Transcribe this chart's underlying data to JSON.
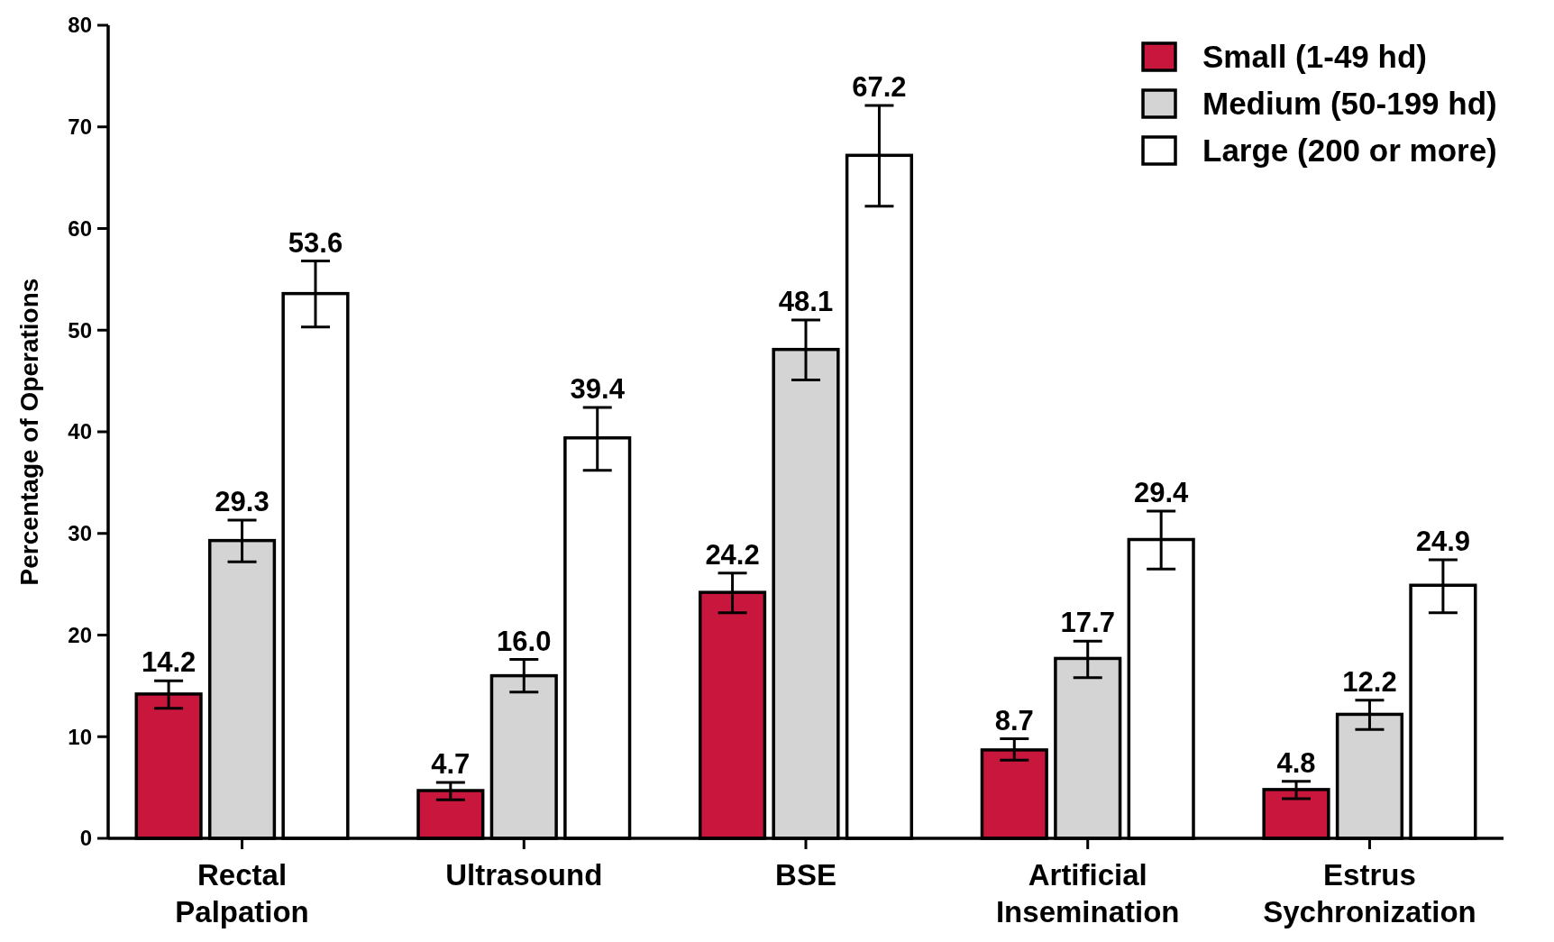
{
  "chart_data": {
    "type": "bar",
    "ylabel": "Percentage of Operations",
    "categories": [
      "Rectal Palpation",
      "Ultrasound",
      "BSE",
      "Artificial Insemination",
      "Estrus Sychronization"
    ],
    "series": [
      {
        "name": "Small (1-49 hd)",
        "color": "#c8163c",
        "values": [
          14.2,
          4.7,
          24.2,
          8.7,
          4.8
        ],
        "errors": [
          [
            12.8,
            15.5
          ],
          [
            3.8,
            5.5
          ],
          [
            22.2,
            26.1
          ],
          [
            7.7,
            9.8
          ],
          [
            3.9,
            5.6
          ]
        ]
      },
      {
        "name": "Medium (50-199 hd)",
        "color": "#d4d4d4",
        "values": [
          29.3,
          16.0,
          48.1,
          17.7,
          12.2
        ],
        "errors": [
          [
            27.2,
            31.3
          ],
          [
            14.4,
            17.6
          ],
          [
            45.1,
            51.0
          ],
          [
            15.8,
            19.4
          ],
          [
            10.7,
            13.6
          ]
        ]
      },
      {
        "name": "Large (200 or more)",
        "color": "#ffffff",
        "values": [
          53.6,
          39.4,
          67.2,
          29.4,
          24.9
        ],
        "errors": [
          [
            50.3,
            56.8
          ],
          [
            36.2,
            42.4
          ],
          [
            62.2,
            72.1
          ],
          [
            26.5,
            32.2
          ],
          [
            22.2,
            27.4
          ]
        ]
      }
    ],
    "value_labels": [
      [
        "14.2",
        "4.7",
        "24.2",
        "8.7",
        "4.8"
      ],
      [
        "29.3",
        "16.0",
        "48.1",
        "17.7",
        "12.2"
      ],
      [
        "53.6",
        "39.4",
        "67.2",
        "29.4",
        "24.9"
      ]
    ],
    "ylim": [
      0,
      80
    ],
    "yticks": [
      0,
      10,
      20,
      30,
      40,
      50,
      60,
      70,
      80
    ],
    "grid": false,
    "legend": "top right"
  }
}
